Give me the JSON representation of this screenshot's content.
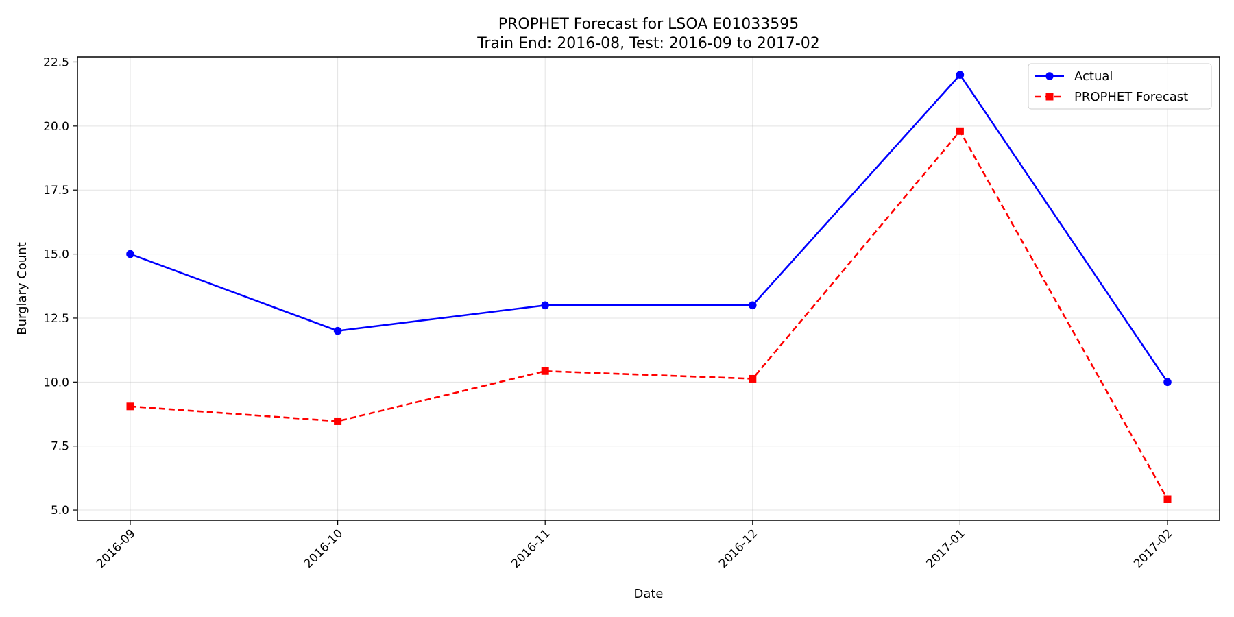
{
  "chart_data": {
    "type": "line",
    "title": "PROPHET Forecast for LSOA E01033595",
    "subtitle": "Train End: 2016-08, Test: 2016-09 to 2017-02",
    "xlabel": "Date",
    "ylabel": "Burglary Count",
    "categories": [
      "2016-09",
      "2016-10",
      "2016-11",
      "2016-12",
      "2017-01",
      "2017-02"
    ],
    "ylim": [
      4.6,
      22.7
    ],
    "yticks": [
      5.0,
      7.5,
      10.0,
      12.5,
      15.0,
      17.5,
      20.0,
      22.5
    ],
    "ytick_labels": [
      "5.0",
      "7.5",
      "10.0",
      "12.5",
      "15.0",
      "17.5",
      "20.0",
      "22.5"
    ],
    "grid": true,
    "legend_position": "top-right",
    "series": [
      {
        "name": "Actual",
        "values": [
          15,
          12,
          13,
          13,
          22,
          10
        ],
        "color": "#0000ff",
        "line_style": "solid",
        "marker": "circle"
      },
      {
        "name": "PROPHET Forecast",
        "values": [
          9.05,
          8.47,
          10.43,
          10.13,
          19.8,
          5.43
        ],
        "color": "#ff0000",
        "line_style": "dashed",
        "marker": "square"
      }
    ]
  }
}
